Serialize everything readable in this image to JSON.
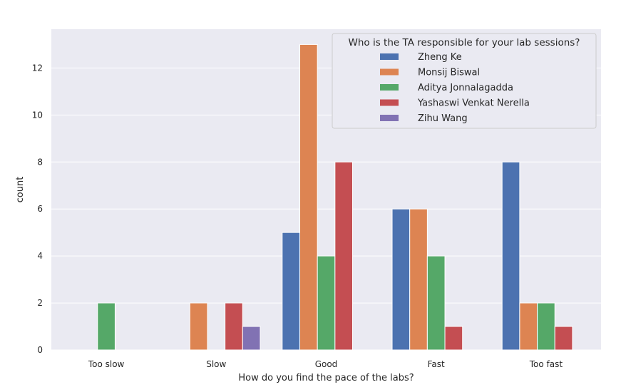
{
  "chart_data": {
    "type": "bar",
    "xlabel": "How do you find the pace of the labs?",
    "ylabel": "count",
    "categories": [
      "Too slow",
      "Slow",
      "Good",
      "Fast",
      "Too fast"
    ],
    "ylim": [
      0,
      13.65
    ],
    "yticks": [
      0,
      2,
      4,
      6,
      8,
      10,
      12
    ],
    "grid": true,
    "legend": {
      "title": "Who is the TA responsible for your lab sessions?",
      "placement": "top-right"
    },
    "series": [
      {
        "name": "Zheng Ke",
        "color": "#4c72b0",
        "values": [
          0,
          0,
          5,
          6,
          8
        ]
      },
      {
        "name": "Monsij Biswal",
        "color": "#dd8452",
        "values": [
          0,
          2,
          13,
          6,
          2
        ]
      },
      {
        "name": "Aditya Jonnalagadda",
        "color": "#55a868",
        "values": [
          2,
          0,
          4,
          4,
          2
        ]
      },
      {
        "name": "Yashaswi Venkat Nerella",
        "color": "#c44e52",
        "values": [
          0,
          2,
          8,
          1,
          1
        ]
      },
      {
        "name": "Zihu Wang",
        "color": "#8172b3",
        "values": [
          0,
          1,
          0,
          0,
          0
        ]
      }
    ]
  }
}
